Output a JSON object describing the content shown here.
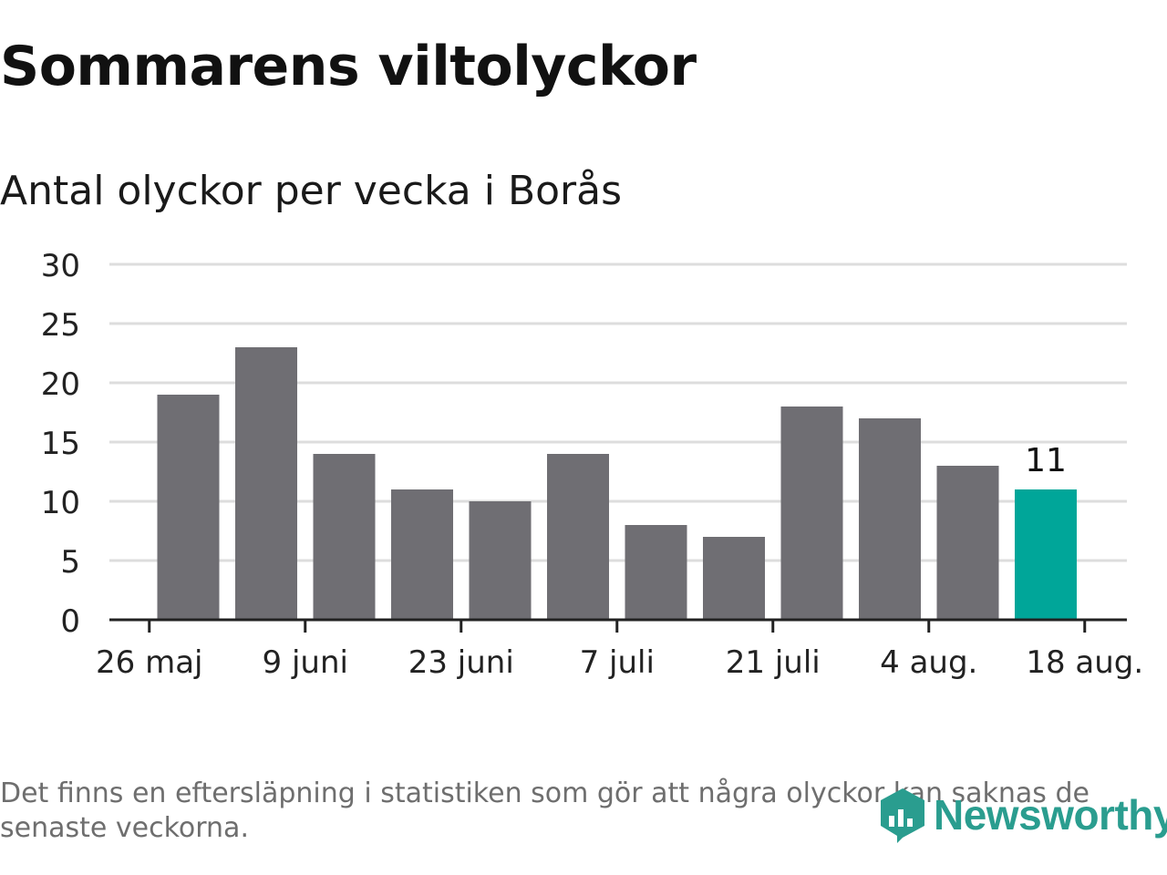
{
  "title": "Sommarens viltolyckor",
  "subtitle": "Antal olyckor per vecka i Borås",
  "footnote": "Det finns en eftersläpning i statistiken som gör att några olyckor kan saknas de senaste veckorna.",
  "logo": {
    "text": "Newsworthy",
    "icon": "newsworthy-logo-icon",
    "color": "#2a9d8f"
  },
  "colors": {
    "bar": "#6f6e73",
    "highlight": "#00a699",
    "grid": "#dddddd",
    "axis": "#222222"
  },
  "chart_data": {
    "type": "bar",
    "title": "Sommarens viltolyckor",
    "subtitle": "Antal olyckor per vecka i Borås",
    "xlabel": "",
    "ylabel": "",
    "ylim": [
      0,
      30
    ],
    "yticks": [
      0,
      5,
      10,
      15,
      20,
      25,
      30
    ],
    "grid": true,
    "values": [
      19,
      23,
      14,
      11,
      10,
      14,
      8,
      7,
      18,
      17,
      13,
      11
    ],
    "x_tick_labels": [
      "26 maj",
      "9 juni",
      "23 juni",
      "7 juli",
      "21 juli",
      "4 aug.",
      "18 aug."
    ],
    "highlight_last": true,
    "annotations": [
      {
        "bar_index": 11,
        "text": "11"
      }
    ]
  }
}
